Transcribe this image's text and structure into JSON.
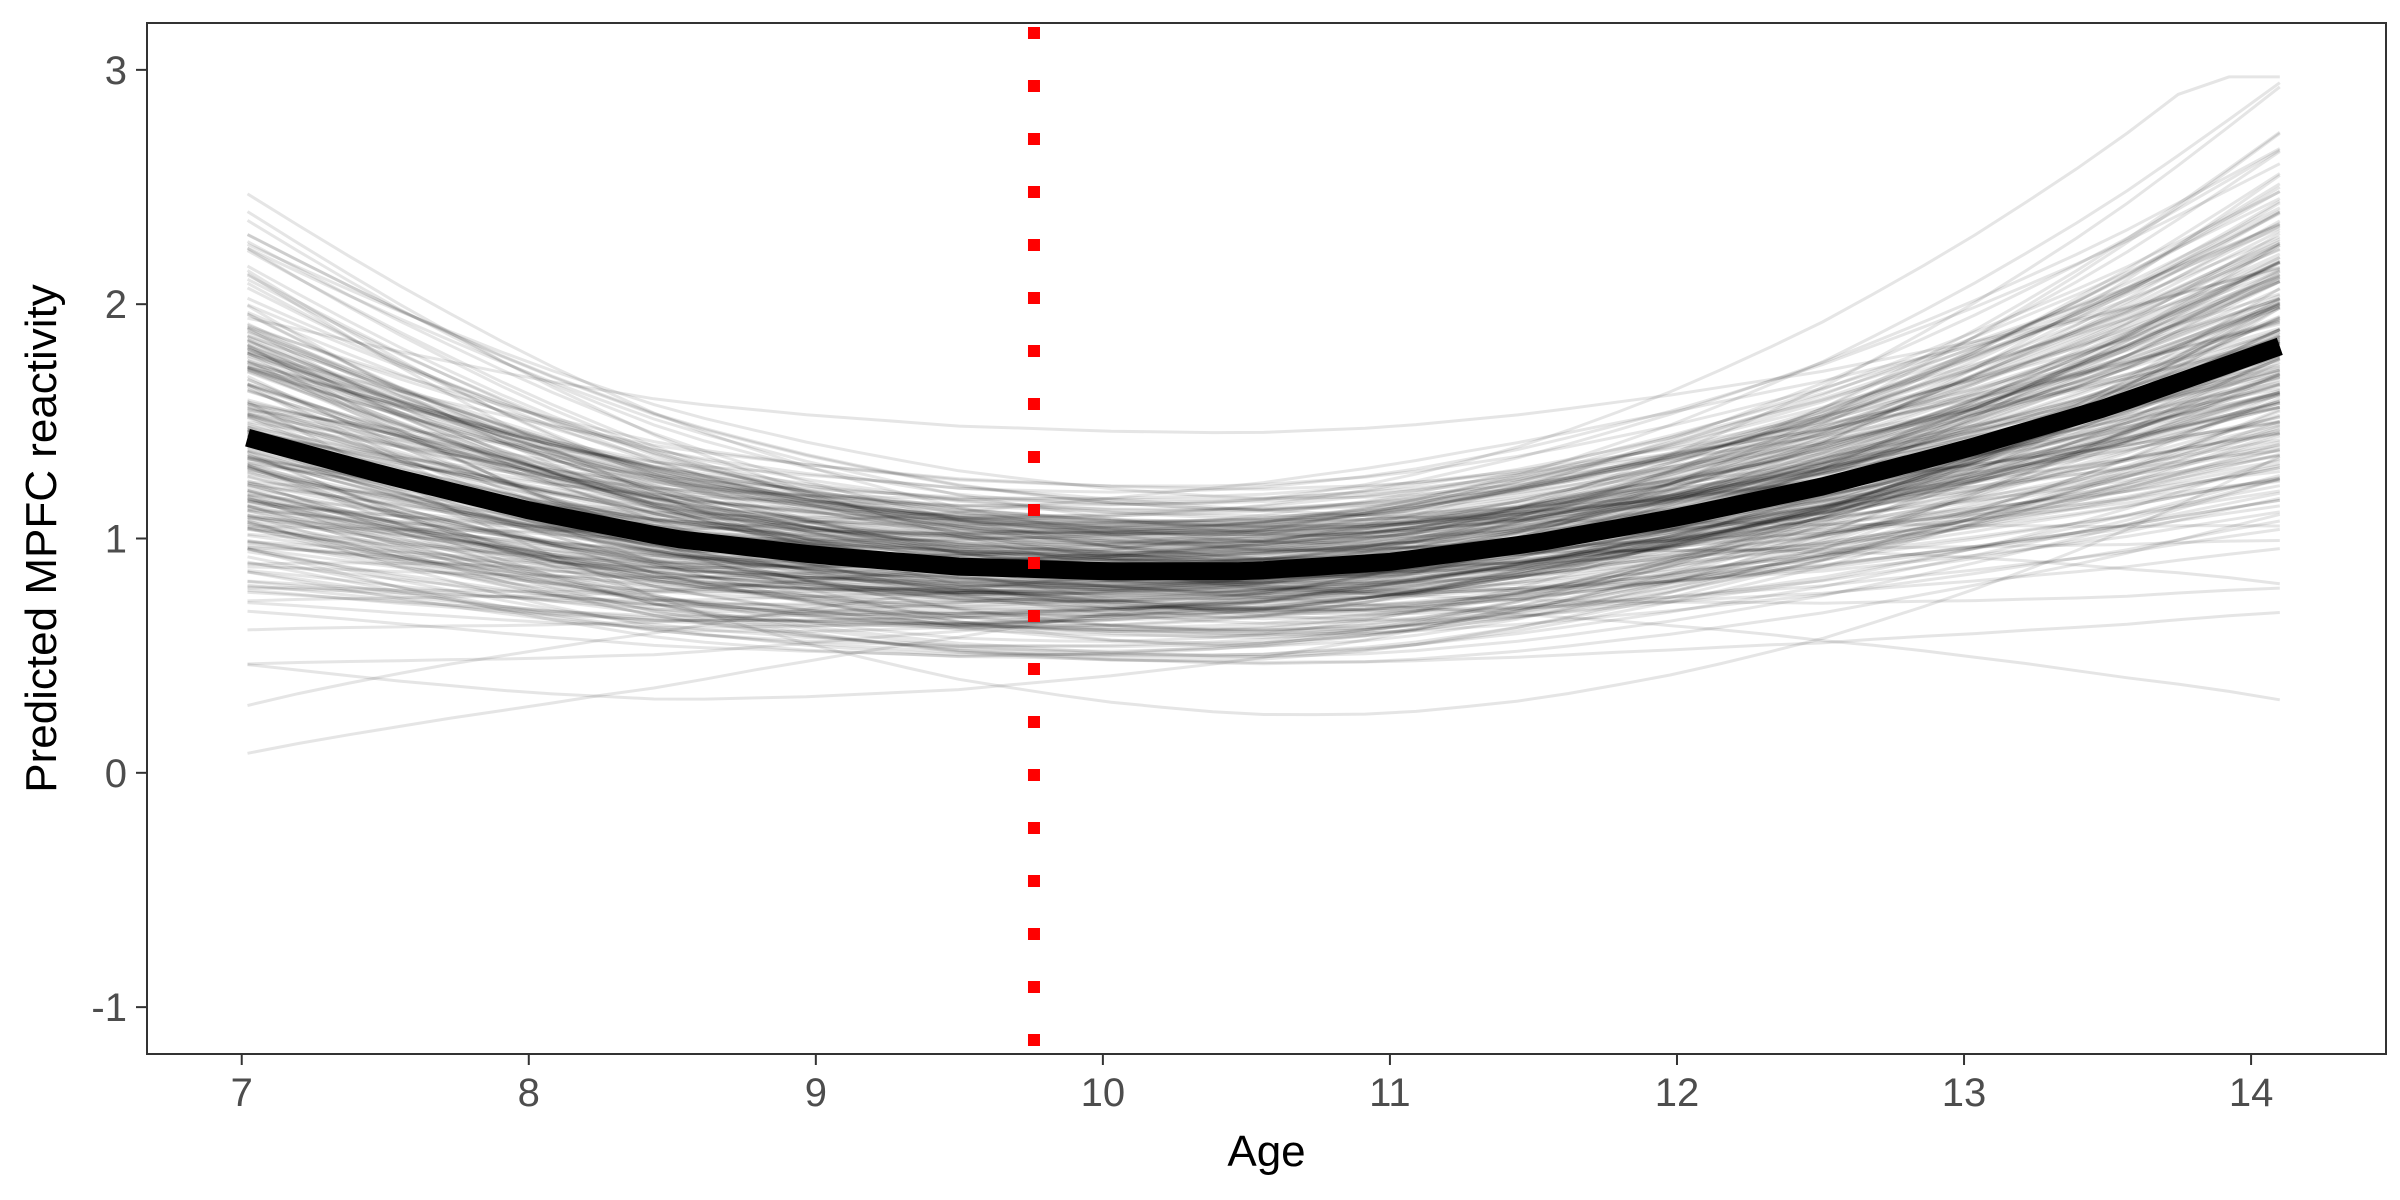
{
  "chart_data": {
    "type": "line",
    "title": "",
    "xlabel": "Age",
    "ylabel": "Predicted MPFC reactivity",
    "xlim": [
      6.67,
      14.47
    ],
    "ylim": [
      -1.2,
      3.2
    ],
    "x_ticks": [
      7,
      8,
      9,
      10,
      11,
      12,
      13,
      14
    ],
    "x_tick_labels": [
      "7",
      "8",
      "9",
      "10",
      "11",
      "12",
      "13",
      "14"
    ],
    "y_ticks": [
      -1,
      0,
      1,
      2,
      3
    ],
    "y_tick_labels": [
      "-1",
      "0",
      "1",
      "2",
      "3"
    ],
    "grid": false,
    "legend": "none",
    "x_range": [
      7.02,
      14.1
    ],
    "mean_curve": {
      "x": [
        7.02,
        7.5,
        8.0,
        8.5,
        9.0,
        9.5,
        9.76,
        10.0,
        10.5,
        11.0,
        11.5,
        12.0,
        12.5,
        13.0,
        13.5,
        14.1
      ],
      "y": [
        1.43,
        1.27,
        1.12,
        1.0,
        0.93,
        0.88,
        0.87,
        0.86,
        0.86,
        0.9,
        0.98,
        1.09,
        1.22,
        1.38,
        1.56,
        1.82
      ]
    },
    "reference_line": {
      "x": 9.76,
      "style": "dotted",
      "color": "#ff0000"
    },
    "sample_curves": {
      "count": 250,
      "note_color": "#000000",
      "opacity": 0.1
    },
    "colors": {
      "mean": "#000000",
      "samples": "#000000",
      "reference": "#ff0000"
    }
  }
}
